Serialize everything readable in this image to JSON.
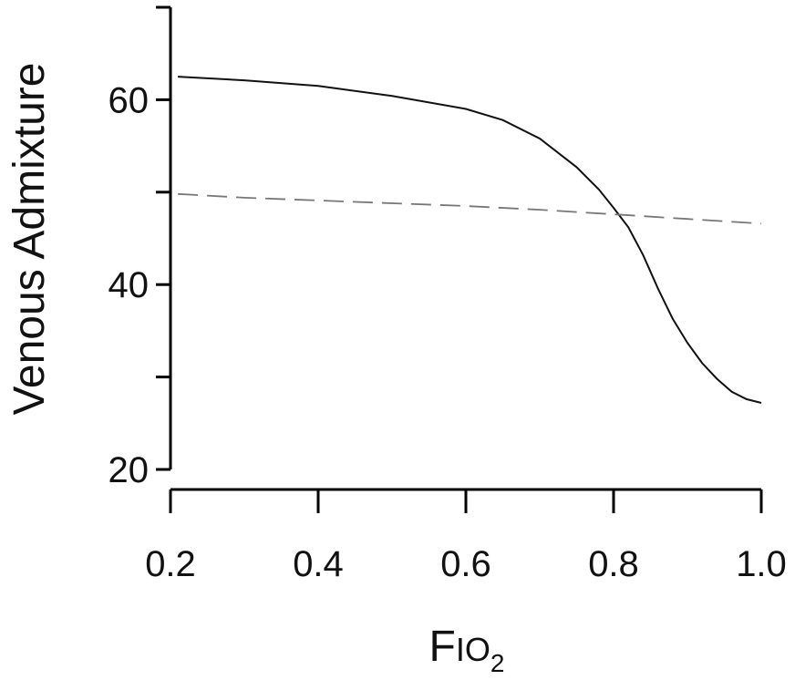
{
  "chart_data": {
    "type": "line",
    "xlabel_main": "F",
    "xlabel_sub": "IO",
    "xlabel_subscript": "2",
    "ylabel": "Venous Admixture",
    "xlim": [
      0.2,
      1.0
    ],
    "ylim": [
      20,
      70
    ],
    "x_ticks": [
      0.2,
      0.4,
      0.6,
      0.8,
      1.0
    ],
    "x_tick_labels": [
      "0.2",
      "0.4",
      "0.6",
      "0.8",
      "1.0"
    ],
    "y_ticks": [
      20,
      30,
      40,
      50,
      60,
      70
    ],
    "y_tick_labels": [
      "20",
      "",
      "40",
      "",
      "60",
      ""
    ],
    "grid": false,
    "series": [
      {
        "style": "solid",
        "color": "#111111",
        "x": [
          0.21,
          0.3,
          0.4,
          0.5,
          0.6,
          0.65,
          0.7,
          0.75,
          0.78,
          0.8,
          0.82,
          0.84,
          0.86,
          0.88,
          0.9,
          0.92,
          0.94,
          0.96,
          0.98,
          1.0
        ],
        "y": [
          62.5,
          62.1,
          61.5,
          60.4,
          59.0,
          57.8,
          55.8,
          52.7,
          50.3,
          48.3,
          46.2,
          43.2,
          39.6,
          36.3,
          33.7,
          31.5,
          29.8,
          28.4,
          27.6,
          27.2
        ]
      },
      {
        "style": "dashed",
        "color": "#777777",
        "x": [
          0.21,
          0.3,
          0.4,
          0.5,
          0.6,
          0.7,
          0.8,
          0.9,
          1.0
        ],
        "y": [
          49.8,
          49.4,
          49.1,
          48.8,
          48.5,
          48.1,
          47.6,
          47.1,
          46.6
        ]
      }
    ]
  }
}
